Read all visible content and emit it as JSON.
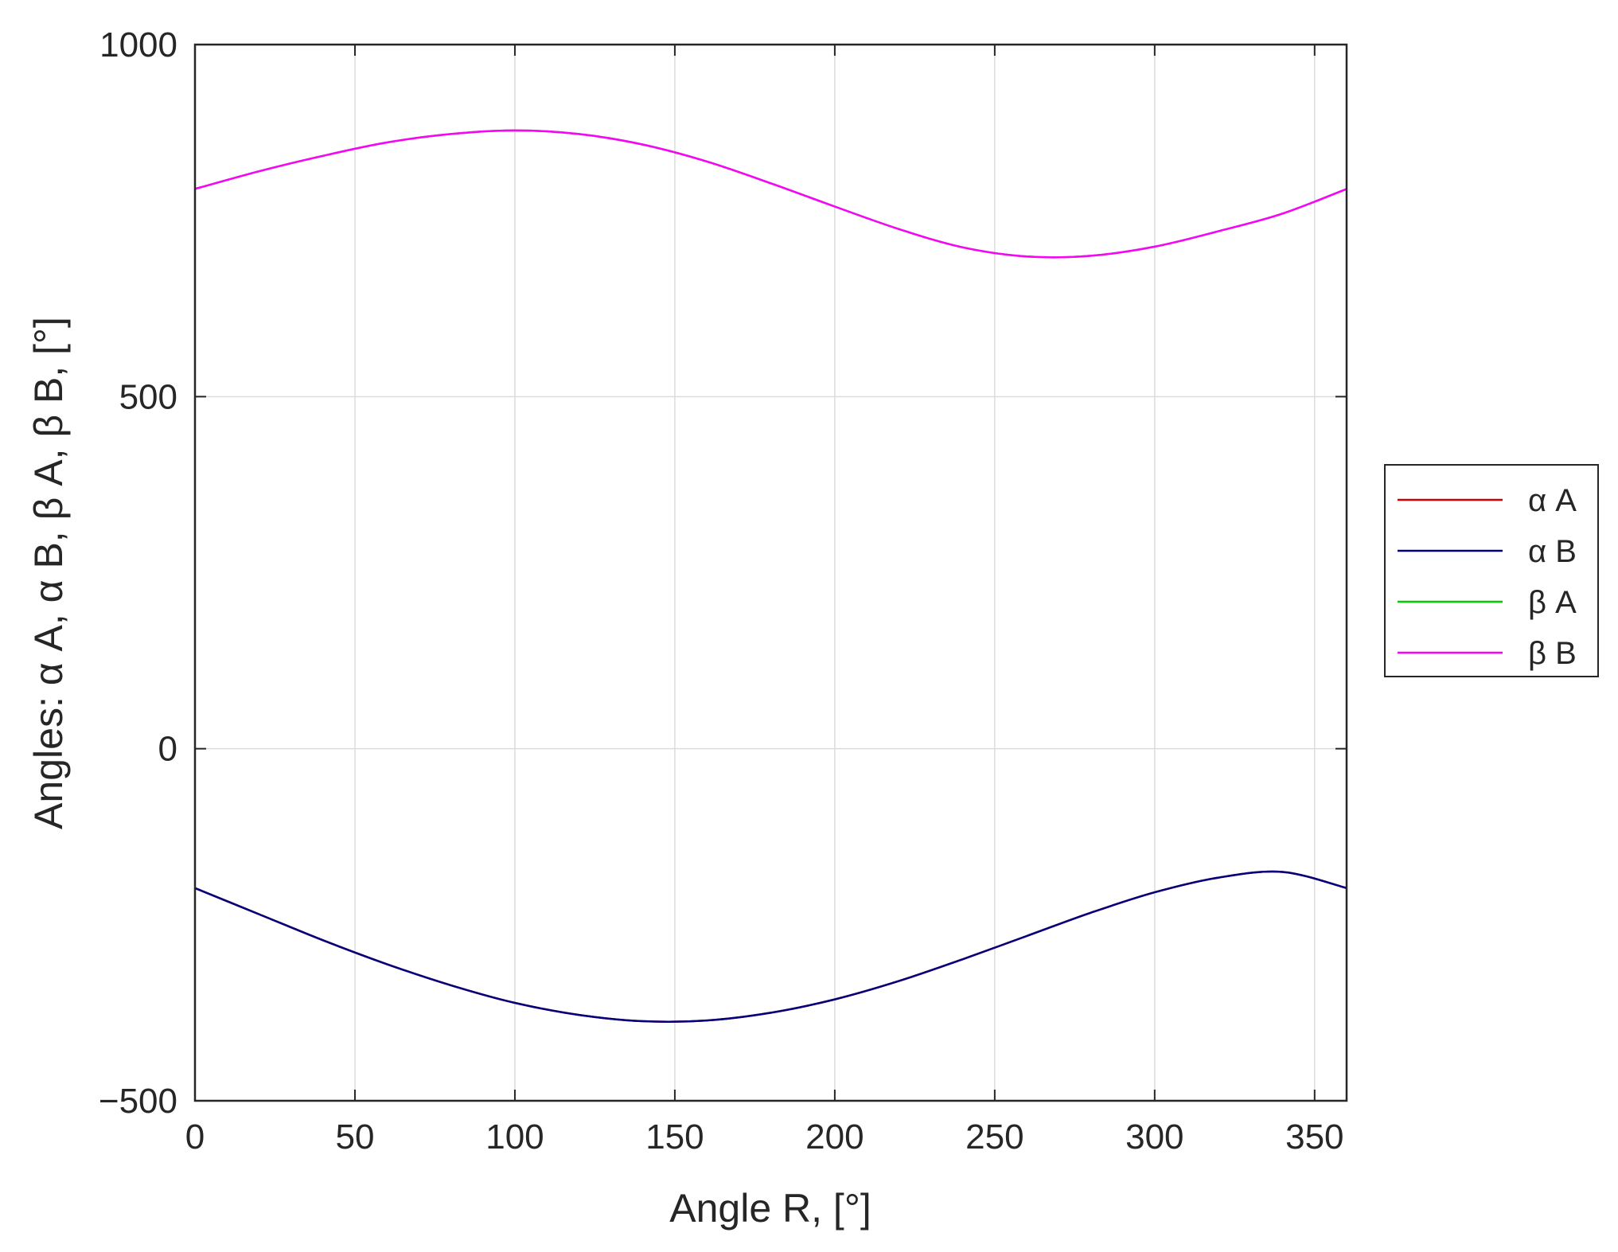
{
  "chart_data": {
    "type": "line",
    "title": "",
    "xlabel": "Angle R, [°]",
    "ylabel": "Angles: α A, α B, β A, β B, [°]",
    "xlim": [
      0,
      360
    ],
    "ylim": [
      -500,
      1000
    ],
    "xticks": [
      0,
      50,
      100,
      150,
      200,
      250,
      300,
      350
    ],
    "yticks": [
      -500,
      0,
      500,
      1000
    ],
    "xtick_labels": [
      "0",
      "50",
      "100",
      "150",
      "200",
      "250",
      "300",
      "350"
    ],
    "ytick_labels": [
      "−500",
      "0",
      "500",
      "1000"
    ],
    "grid": true,
    "legend_position": "outside-right",
    "x": [
      0,
      20,
      40,
      60,
      80,
      100,
      120,
      140,
      160,
      180,
      200,
      220,
      240,
      260,
      280,
      300,
      320,
      340,
      360
    ],
    "series": [
      {
        "name": "α A",
        "color": "#cc0000",
        "values": [
          -198,
          -235,
          -272,
          -306,
          -336,
          -361,
          -378,
          -387,
          -386,
          -375,
          -356,
          -330,
          -299,
          -266,
          -233,
          -204,
          -183,
          -175,
          -198
        ]
      },
      {
        "name": "α B",
        "color": "#00007f",
        "values": [
          -198,
          -235,
          -272,
          -306,
          -336,
          -361,
          -378,
          -387,
          -386,
          -375,
          -356,
          -330,
          -299,
          -266,
          -233,
          -204,
          -183,
          -175,
          -198
        ]
      },
      {
        "name": "β A",
        "color": "#00cc00",
        "values": [
          795,
          820,
          842,
          861,
          873,
          878,
          873,
          858,
          834,
          803,
          770,
          738,
          712,
          699,
          700,
          713,
          735,
          760,
          795
        ]
      },
      {
        "name": "β B",
        "color": "#ff00ff",
        "values": [
          795,
          820,
          842,
          861,
          873,
          878,
          873,
          858,
          834,
          803,
          770,
          738,
          712,
          699,
          700,
          713,
          735,
          760,
          795
        ]
      }
    ]
  }
}
